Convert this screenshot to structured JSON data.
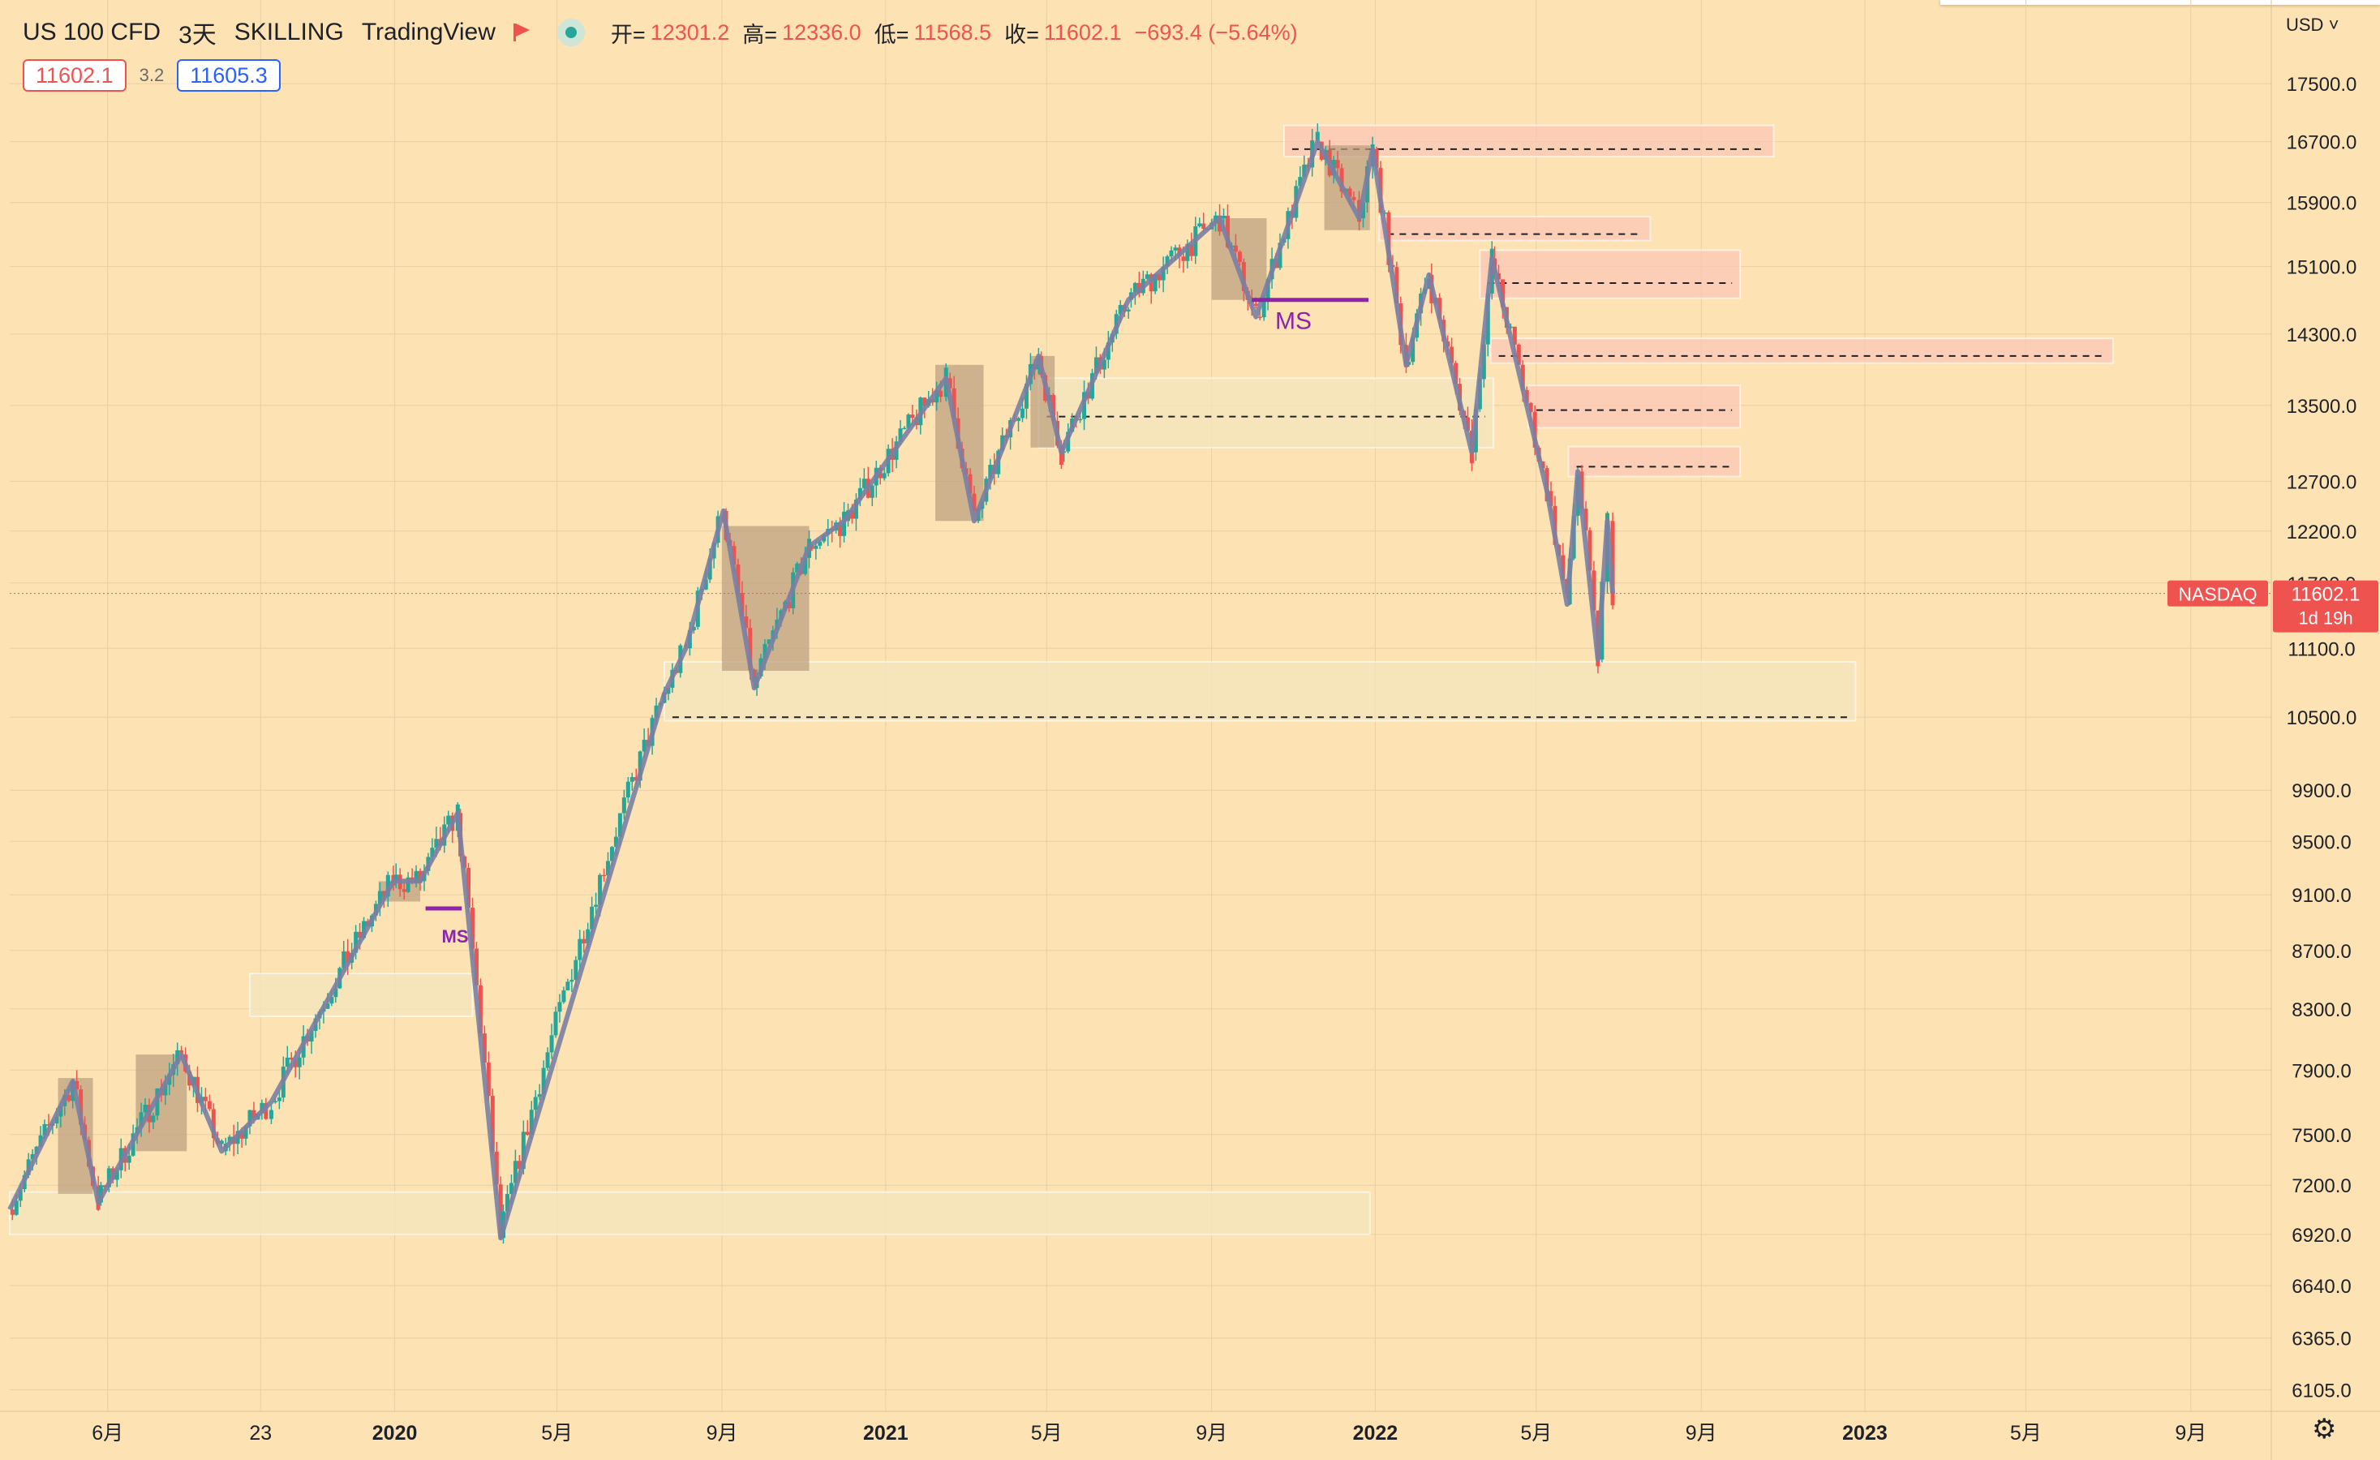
{
  "header": {
    "symbol": "US 100 CFD",
    "interval": "3天",
    "broker": "SKILLING",
    "platform": "TradingView",
    "open_label": "开=",
    "open": "12301.2",
    "high_label": "高=",
    "high": "12336.0",
    "low_label": "低=",
    "low": "11568.5",
    "close_label": "收=",
    "close": "11602.1",
    "change": "−693.4 (−5.64%)"
  },
  "quote": {
    "sell": "11602.1",
    "spread": "3.2",
    "buy": "11605.3"
  },
  "currency": "USD",
  "colors": {
    "background": "#fde3b4",
    "up": "#26a69a",
    "down": "#ef5350",
    "trend_line": "#7a7fa3",
    "ms_line": "#8e24aa",
    "demand_zone": "#f3e6bd",
    "supply_zone": "#f9c7b6",
    "consolidation_box": "#bb9f80"
  },
  "chart_data": {
    "type": "candlestick",
    "symbol": "NASDAQ",
    "scale": "log",
    "ylim": [
      6000,
      18000
    ],
    "xlim": [
      "2019-03-20",
      "2023-10-31"
    ],
    "y_ticks": [
      6105,
      6365,
      6640,
      6920,
      7200,
      7500,
      7900,
      8300,
      8700,
      9100,
      9500,
      9900,
      10500,
      11100,
      11700,
      12200,
      12700,
      13500,
      14300,
      15100,
      15900,
      16700,
      17500
    ],
    "y_tick_labels": [
      "6105.0",
      "6365.0",
      "6640.0",
      "6920.0",
      "7200.0",
      "7500.0",
      "7900.0",
      "8300.0",
      "8700.0",
      "9100.0",
      "9500.0",
      "9900.0",
      "10500.0",
      "11100.0",
      "11700.0",
      "12200.0",
      "12700.0",
      "13500.0",
      "14300.0",
      "15100.0",
      "15900.0",
      "16700.0",
      "17500.0"
    ],
    "x_ticks": [
      {
        "date": "2019-06-01",
        "label": "6月"
      },
      {
        "date": "2019-09-23",
        "label": "23"
      },
      {
        "date": "2020-01-01",
        "label": "2020"
      },
      {
        "date": "2020-05-01",
        "label": "5月"
      },
      {
        "date": "2020-09-01",
        "label": "9月"
      },
      {
        "date": "2021-01-01",
        "label": "2021"
      },
      {
        "date": "2021-05-01",
        "label": "5月"
      },
      {
        "date": "2021-09-01",
        "label": "9月"
      },
      {
        "date": "2022-01-01",
        "label": "2022"
      },
      {
        "date": "2022-05-01",
        "label": "5月"
      },
      {
        "date": "2022-09-01",
        "label": "9月"
      },
      {
        "date": "2023-01-01",
        "label": "2023"
      },
      {
        "date": "2023-05-01",
        "label": "5月"
      },
      {
        "date": "2023-09-01",
        "label": "9月"
      }
    ],
    "price_path": [
      [
        "2019-03-20",
        7060
      ],
      [
        "2019-05-06",
        7830
      ],
      [
        "2019-05-25",
        7100
      ],
      [
        "2019-07-26",
        8000
      ],
      [
        "2019-08-25",
        7400
      ],
      [
        "2019-10-01",
        7700
      ],
      [
        "2019-12-31",
        9200
      ],
      [
        "2020-01-20",
        9200
      ],
      [
        "2020-02-17",
        9720
      ],
      [
        "2020-03-20",
        6900
      ],
      [
        "2020-07-20",
        10700
      ],
      [
        "2020-08-05",
        11100
      ],
      [
        "2020-09-02",
        12400
      ],
      [
        "2020-09-25",
        10750
      ],
      [
        "2020-11-05",
        12050
      ],
      [
        "2020-12-01",
        12300
      ],
      [
        "2021-02-15",
        13800
      ],
      [
        "2021-03-08",
        12300
      ],
      [
        "2021-04-25",
        14050
      ],
      [
        "2021-05-12",
        13000
      ],
      [
        "2021-07-01",
        14700
      ],
      [
        "2021-09-07",
        15700
      ],
      [
        "2021-10-04",
        14500
      ],
      [
        "2021-11-19",
        16700
      ],
      [
        "2021-12-20",
        15700
      ],
      [
        "2021-12-30",
        16600
      ],
      [
        "2022-01-24",
        13950
      ],
      [
        "2022-02-10",
        15000
      ],
      [
        "2022-03-14",
        13000
      ],
      [
        "2022-03-29",
        15200
      ],
      [
        "2022-05-09",
        12600
      ],
      [
        "2022-05-24",
        11500
      ],
      [
        "2022-06-01",
        12800
      ],
      [
        "2022-06-16",
        11000
      ],
      [
        "2022-06-23",
        12300
      ],
      [
        "2022-06-27",
        11602
      ]
    ],
    "last_price": "11602.1",
    "last_label": "NASDAQ",
    "countdown": "1d 19h",
    "annotations": [
      {
        "type": "market_structure",
        "text": "MS",
        "date": "2020-02-15",
        "price": 9000
      },
      {
        "type": "market_structure",
        "text": "MS",
        "date": "2021-11-01",
        "price": 14700
      }
    ],
    "grid": true,
    "legend": "none"
  }
}
